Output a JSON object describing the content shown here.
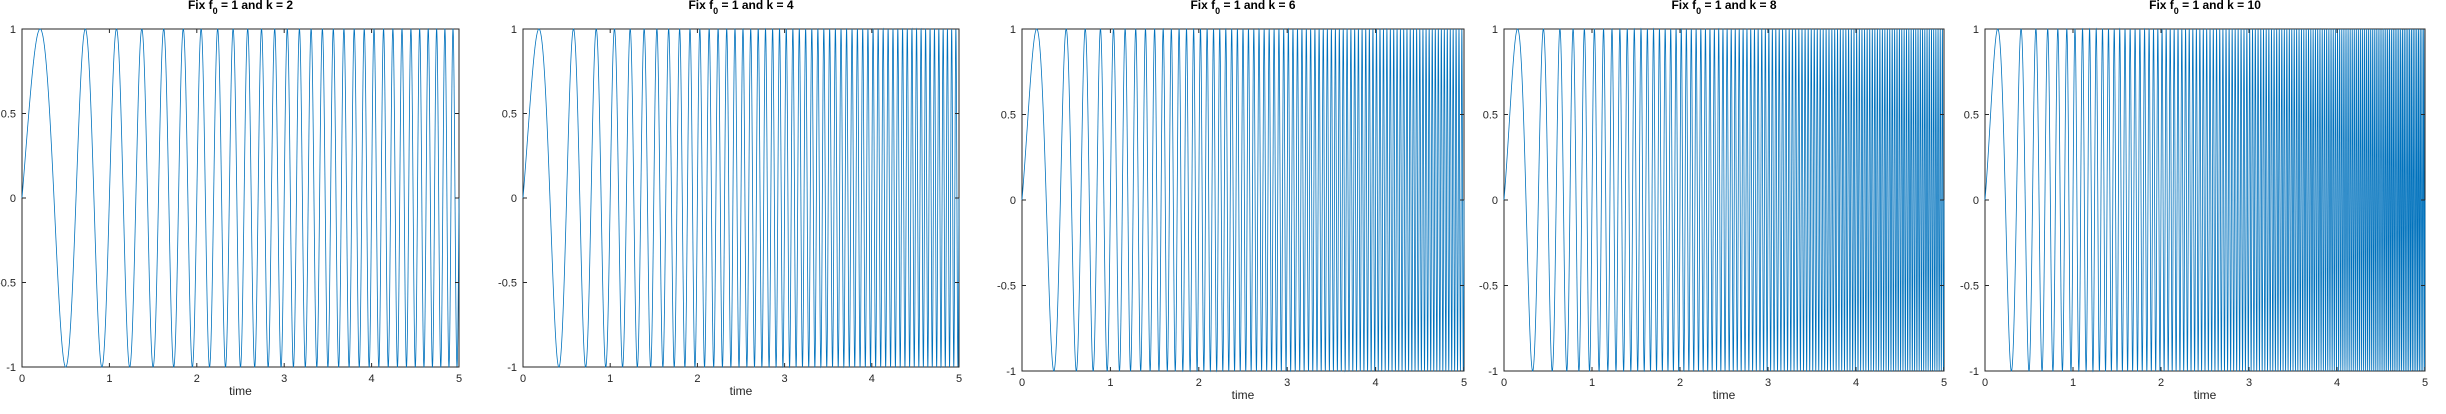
{
  "chart_data": [
    {
      "type": "line",
      "title_pre": "Fix f",
      "title_sub": "0",
      "title_post": " = 1 and k = 2",
      "f0": 1,
      "k": 2,
      "xlabel": "time",
      "ylabel": "",
      "xlim": [
        0,
        5
      ],
      "ylim": [
        -1,
        1
      ],
      "xticks": [
        "0",
        "1",
        "2",
        "3",
        "4",
        "5"
      ],
      "yticks": [
        "-1",
        "-0.5",
        "0",
        "0.5",
        "1"
      ],
      "series": [
        {
          "function": "sin(2π(f0·t + k·t²/2))",
          "t_range": [
            0,
            5
          ],
          "color": "#0072bd"
        }
      ]
    },
    {
      "type": "line",
      "title_pre": "Fix f",
      "title_sub": "0",
      "title_post": " = 1 and k = 4",
      "f0": 1,
      "k": 4,
      "xlabel": "time",
      "ylabel": "",
      "xlim": [
        0,
        5
      ],
      "ylim": [
        -1,
        1
      ],
      "xticks": [
        "0",
        "1",
        "2",
        "3",
        "4",
        "5"
      ],
      "yticks": [
        "-1",
        "-0.5",
        "0",
        "0.5",
        "1"
      ],
      "series": [
        {
          "function": "sin(2π(f0·t + k·t²/2))",
          "t_range": [
            0,
            5
          ],
          "color": "#0072bd"
        }
      ]
    },
    {
      "type": "line",
      "title_pre": "Fix f",
      "title_sub": "0",
      "title_post": " = 1 and k = 6",
      "f0": 1,
      "k": 6,
      "xlabel": "time",
      "ylabel": "",
      "xlim": [
        0,
        5
      ],
      "ylim": [
        -1,
        1
      ],
      "xticks": [
        "0",
        "1",
        "2",
        "3",
        "4",
        "5"
      ],
      "yticks": [
        "-1",
        "-0.5",
        "0",
        "0.5",
        "1"
      ],
      "series": [
        {
          "function": "sin(2π(f0·t + k·t²/2))",
          "t_range": [
            0,
            5
          ],
          "color": "#0072bd"
        }
      ]
    },
    {
      "type": "line",
      "title_pre": "Fix f",
      "title_sub": "0",
      "title_post": " = 1 and k = 8",
      "f0": 1,
      "k": 8,
      "xlabel": "time",
      "ylabel": "",
      "xlim": [
        0,
        5
      ],
      "ylim": [
        -1,
        1
      ],
      "xticks": [
        "0",
        "1",
        "2",
        "3",
        "4",
        "5"
      ],
      "yticks": [
        "-1",
        "-0.5",
        "0",
        "0.5",
        "1"
      ],
      "series": [
        {
          "function": "sin(2π(f0·t + k·t²/2))",
          "t_range": [
            0,
            5
          ],
          "color": "#0072bd"
        }
      ]
    },
    {
      "type": "line",
      "title_pre": "Fix f",
      "title_sub": "0",
      "title_post": " = 1 and k = 10",
      "f0": 1,
      "k": 10,
      "xlabel": "time",
      "ylabel": "",
      "xlim": [
        0,
        5
      ],
      "ylim": [
        -1,
        1
      ],
      "xticks": [
        "0",
        "1",
        "2",
        "3",
        "4",
        "5"
      ],
      "yticks": [
        "-1",
        "-0.5",
        "0",
        "0.5",
        "1"
      ],
      "series": [
        {
          "function": "sin(2π(f0·t + k·t²/2))",
          "t_range": [
            0,
            5
          ],
          "color": "#0072bd"
        }
      ]
    }
  ]
}
